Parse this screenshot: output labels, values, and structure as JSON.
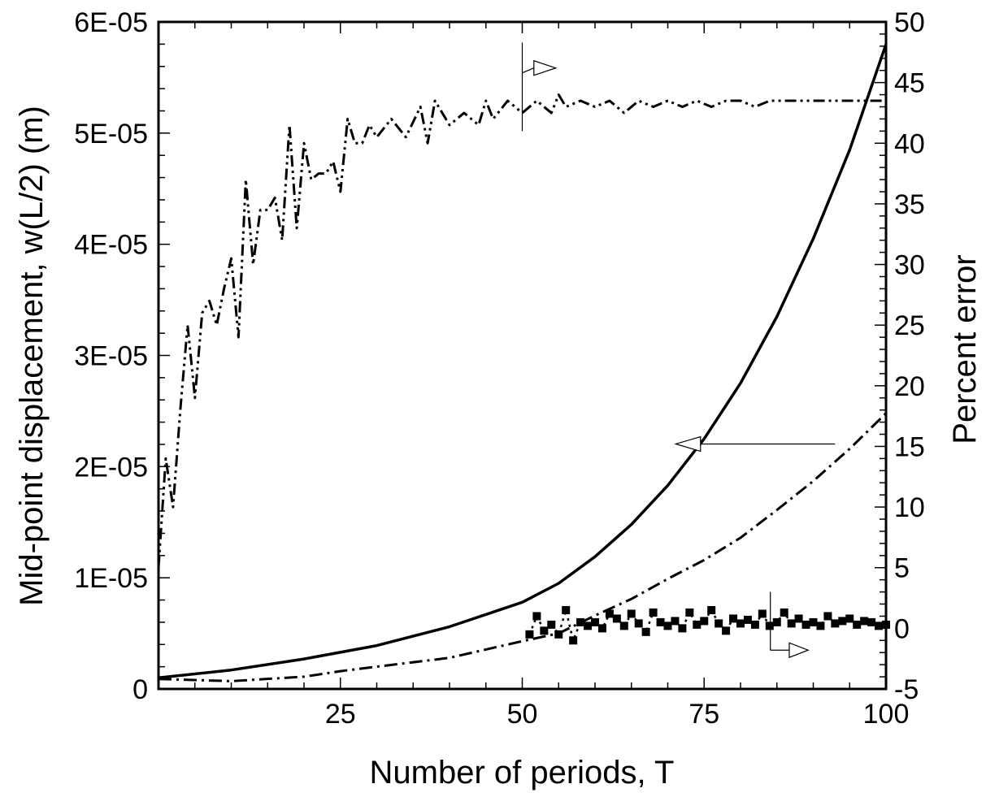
{
  "chart_data": {
    "type": "line",
    "title": "",
    "xlabel": "Number of periods, T",
    "ylabel_left": "Mid-point displacement, w(L/2) (m)",
    "ylabel_right": "Percent error",
    "xlim": [
      0,
      100
    ],
    "ylim_left": [
      0,
      6e-05
    ],
    "ylim_right": [
      -5,
      50
    ],
    "grid": false,
    "legend": "none",
    "x_ticks": [
      "25",
      "50",
      "75",
      "100"
    ],
    "y_left_ticks": [
      "0",
      "1E-05",
      "2E-05",
      "3E-05",
      "4E-05",
      "5E-05",
      "6E-05"
    ],
    "y_right_ticks": [
      "-5",
      "0",
      "5",
      "10",
      "15",
      "20",
      "25",
      "30",
      "35",
      "40",
      "45",
      "50"
    ],
    "series": [
      {
        "axis": "left",
        "style": "solid",
        "x": [
          0,
          10,
          20,
          30,
          40,
          50,
          55,
          60,
          65,
          70,
          75,
          80,
          85,
          90,
          95,
          100
        ],
        "values": [
          1e-06,
          1.7e-06,
          2.7e-06,
          3.9e-06,
          5.6e-06,
          7.8e-06,
          9.5e-06,
          1.19e-05,
          1.48e-05,
          1.83e-05,
          2.25e-05,
          2.75e-05,
          3.35e-05,
          4.05e-05,
          4.85e-05,
          5.8e-05
        ]
      },
      {
        "axis": "left",
        "style": "dash-dot",
        "x": [
          0,
          10,
          20,
          25,
          30,
          40,
          50,
          55,
          60,
          65,
          70,
          75,
          80,
          85,
          90,
          95,
          100
        ],
        "values": [
          9e-07,
          7e-07,
          1.1e-06,
          1.6e-06,
          2e-06,
          2.8e-06,
          4.3e-06,
          5e-06,
          6.6e-06,
          8.1e-06,
          9.9e-06,
          1.16e-05,
          1.36e-05,
          1.61e-05,
          1.87e-05,
          2.16e-05,
          2.48e-05
        ]
      },
      {
        "axis": "right",
        "style": "dash-dot-dot",
        "x": [
          0,
          1,
          2,
          3,
          4,
          5,
          6,
          7,
          8,
          9,
          10,
          11,
          12,
          13,
          14,
          15,
          16,
          17,
          18,
          19,
          20,
          21,
          22,
          23,
          24,
          25,
          26,
          27,
          28,
          29,
          30,
          32,
          34,
          36,
          37,
          38,
          40,
          42,
          44,
          45,
          46,
          48,
          50,
          52,
          54,
          55,
          56,
          58,
          60,
          62,
          64,
          66,
          68,
          70,
          72,
          74,
          76,
          78,
          80,
          82,
          84,
          86,
          88,
          90,
          92,
          94,
          96,
          98,
          100
        ],
        "values": [
          5,
          14,
          10,
          18,
          25,
          19,
          26,
          27,
          25,
          28,
          30.5,
          24,
          37,
          30,
          34.5,
          34.5,
          35.5,
          32,
          41.5,
          33,
          40,
          37,
          37.5,
          37.5,
          38.5,
          36,
          42,
          40,
          40,
          41.5,
          40.5,
          42,
          40.5,
          43,
          40,
          43.5,
          41.5,
          42.5,
          41.5,
          43.5,
          42,
          43.5,
          42.5,
          43.5,
          42.5,
          44,
          43,
          43.5,
          43,
          43.5,
          42.5,
          43.5,
          43,
          43.5,
          43,
          43.5,
          43,
          43.5,
          43.5,
          43,
          43.5,
          43.5,
          43.5,
          43.5,
          43.5,
          43.5,
          43.5,
          43.5,
          43.5
        ]
      },
      {
        "axis": "right",
        "style": "dotted-square-markers",
        "x": [
          51,
          52,
          53,
          54,
          55,
          56,
          57,
          58,
          59,
          60,
          61,
          62,
          63,
          64,
          65,
          66,
          67,
          68,
          69,
          70,
          71,
          72,
          73,
          74,
          75,
          76,
          77,
          78,
          79,
          80,
          81,
          82,
          83,
          84,
          85,
          86,
          87,
          88,
          89,
          90,
          91,
          92,
          93,
          94,
          95,
          96,
          97,
          98,
          99,
          100
        ],
        "values": [
          -0.5,
          1,
          -0.2,
          0.3,
          -0.5,
          1.5,
          -1,
          0.5,
          0.2,
          0.5,
          0,
          1.2,
          0.8,
          0.2,
          1.2,
          0.4,
          -0.3,
          1.3,
          0.5,
          0.2,
          0.6,
          0,
          1.3,
          0.3,
          0.6,
          1.5,
          0.4,
          -0.2,
          0.8,
          0.4,
          0.7,
          0.3,
          1.2,
          0.2,
          0.5,
          1.3,
          0.4,
          0.8,
          0.3,
          0.5,
          0.2,
          1,
          0.4,
          0.6,
          0.8,
          0.3,
          0.6,
          0.5,
          0.2,
          0.3
        ]
      }
    ]
  }
}
